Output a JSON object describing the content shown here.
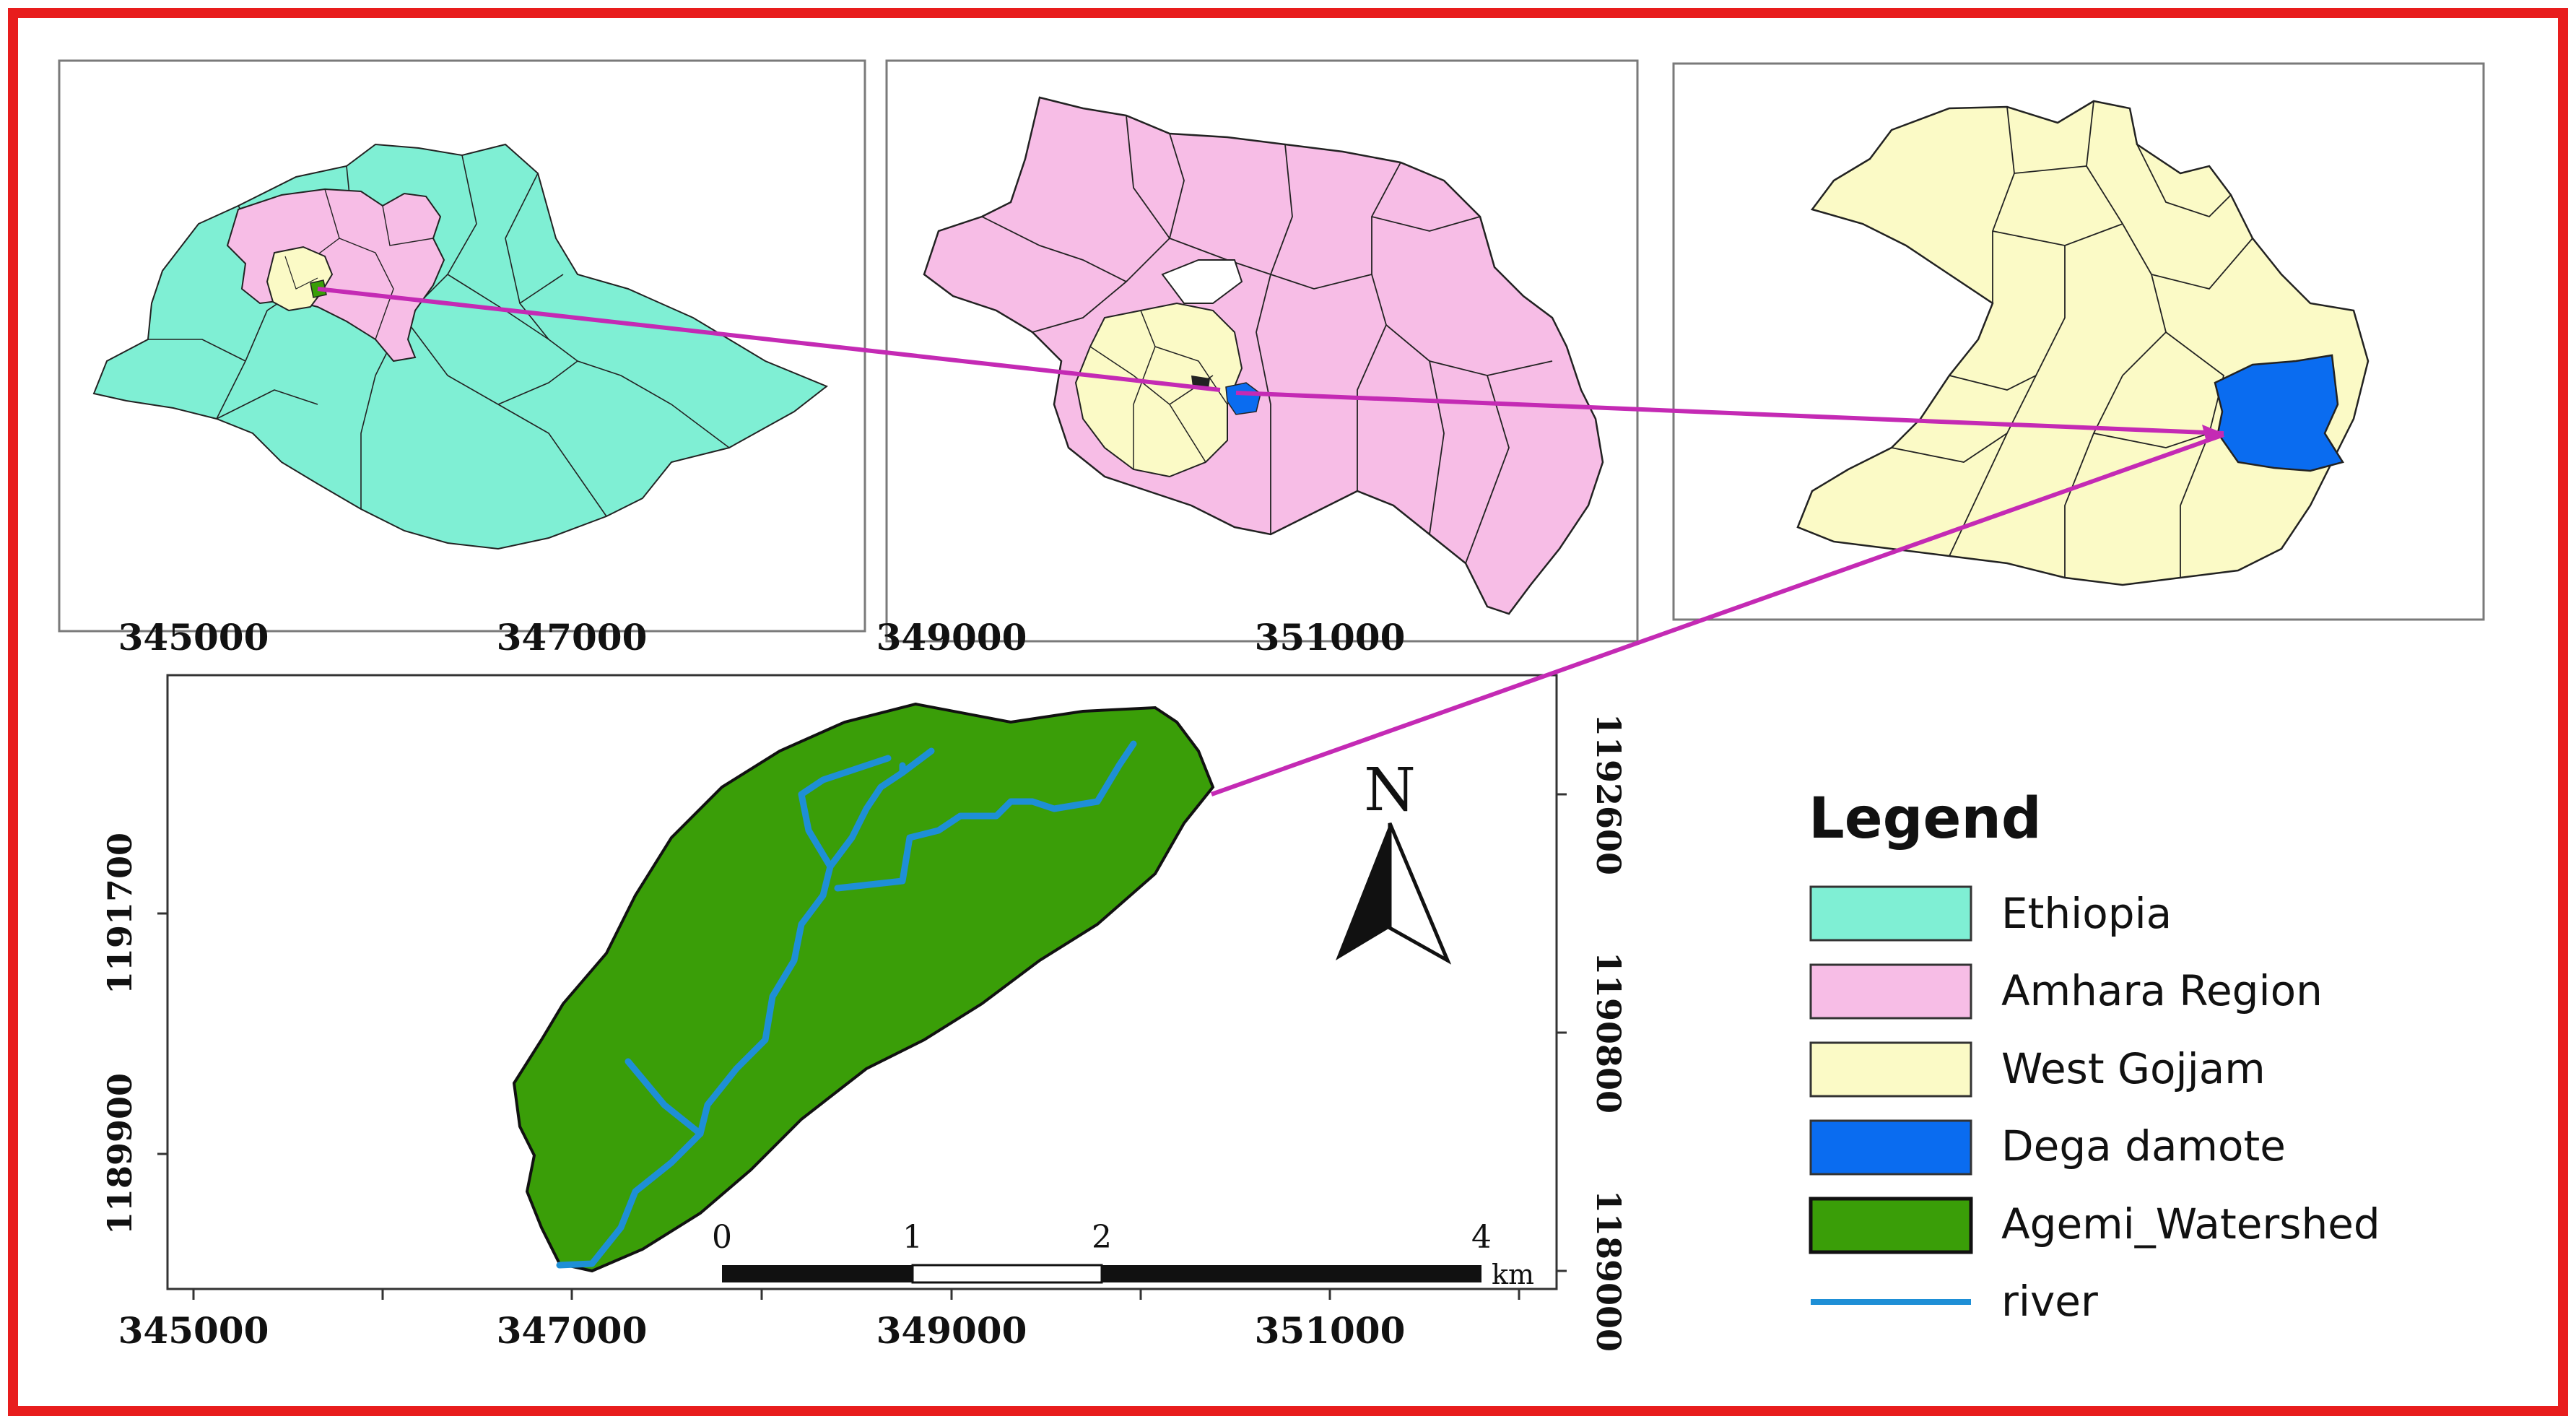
{
  "colors": {
    "frame": "#e81d1d",
    "ethiopia": "#7fefd4",
    "amhara": "#f7bde6",
    "west_gojjam": "#fbfac6",
    "dega_damote": "#0a6cf0",
    "watershed": "#3a9e08",
    "river": "#1e8fd6",
    "connector": "#c42ab4"
  },
  "top_axis": {
    "ticks": [
      "345000",
      "347000",
      "349000",
      "351000"
    ]
  },
  "main_map": {
    "bottom_ticks": [
      "345000",
      "347000",
      "349000",
      "351000"
    ],
    "left_ticks": [
      "1191700",
      "1189900"
    ],
    "right_ticks": [
      "1192600",
      "1190800",
      "1189000"
    ]
  },
  "north_arrow": {
    "label": "N"
  },
  "scale_bar": {
    "labels": [
      "0",
      "1",
      "2",
      "4"
    ],
    "unit": "km"
  },
  "legend": {
    "title": "Legend",
    "items": [
      {
        "label": "Ethiopia",
        "symbol": "fill",
        "color": "#7fefd4"
      },
      {
        "label": "Amhara Region",
        "symbol": "fill",
        "color": "#f7bde6"
      },
      {
        "label": "West Gojjam",
        "symbol": "fill",
        "color": "#fbfac6"
      },
      {
        "label": "Dega damote",
        "symbol": "fill",
        "color": "#0a6cf0"
      },
      {
        "label": "Agemi_Watershed",
        "symbol": "fill",
        "color": "#3a9e08"
      },
      {
        "label": "river",
        "symbol": "line",
        "color": "#1e8fd6"
      }
    ]
  }
}
